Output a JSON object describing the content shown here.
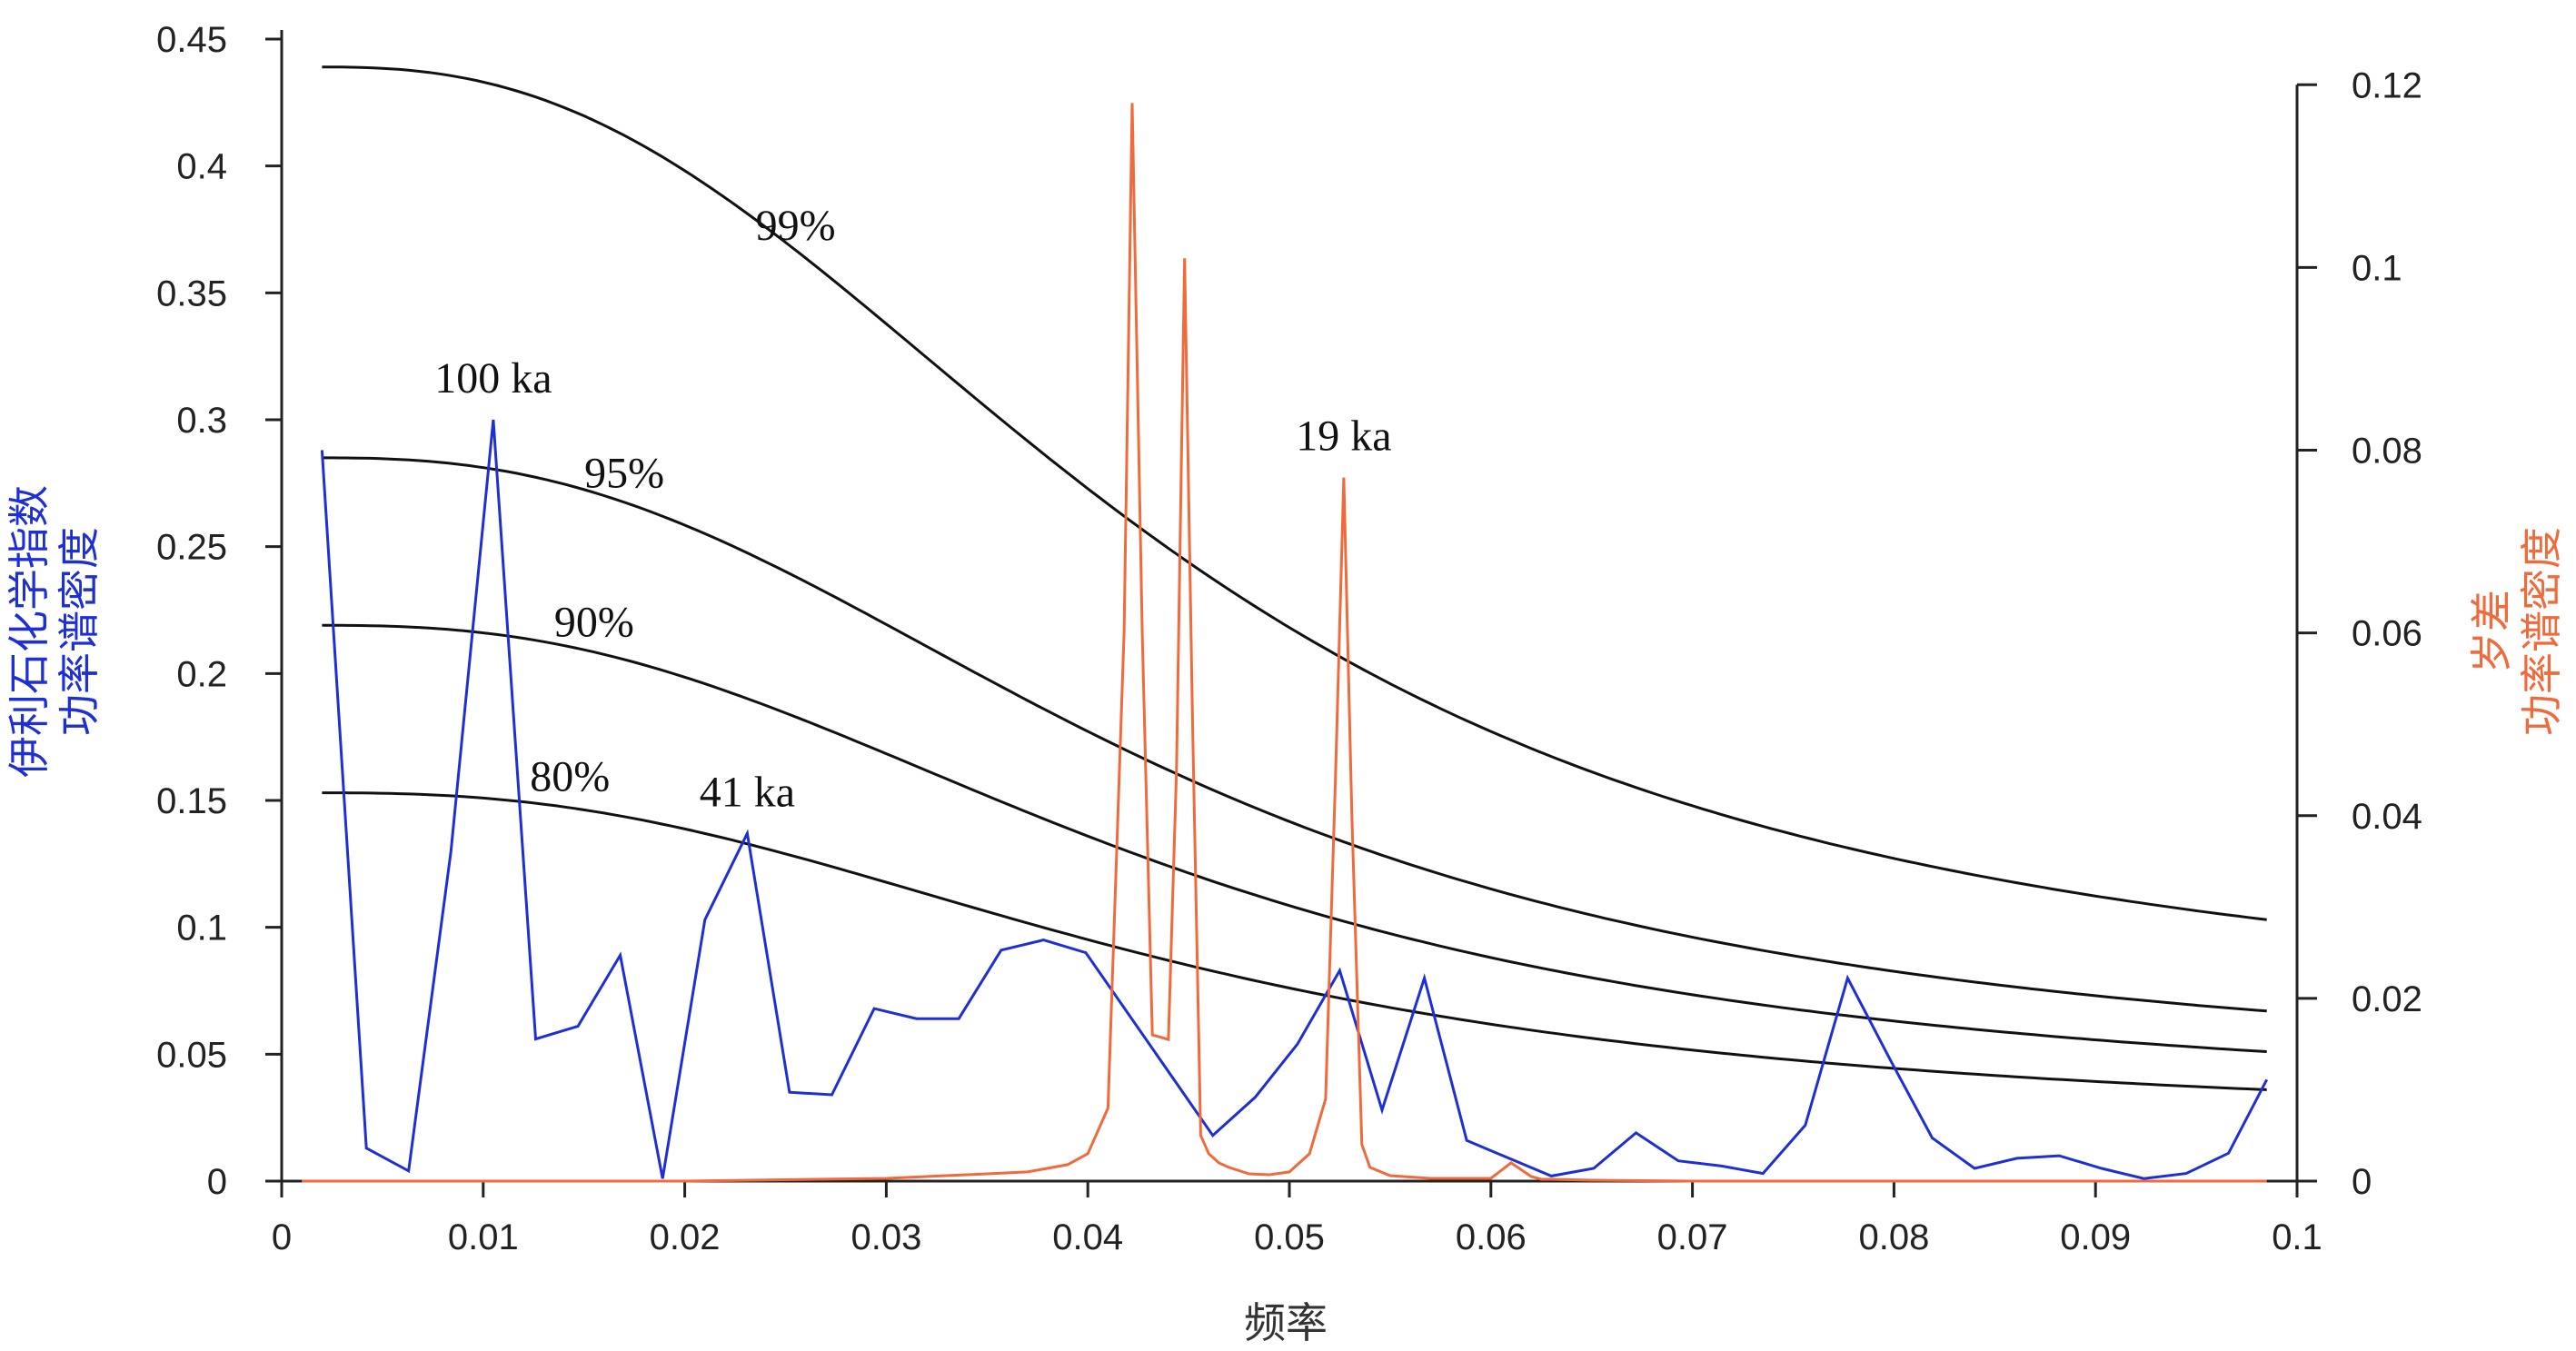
{
  "chart_data": {
    "type": "line",
    "title": "",
    "xlabel": "频率",
    "ylabel_left": [
      "伊利石化学指数",
      "功率谱密度"
    ],
    "ylabel_right": [
      "岁差",
      "功率谱密度"
    ],
    "xlim": [
      0,
      0.1
    ],
    "ylim_left": [
      0,
      0.45
    ],
    "ylim_right": [
      0,
      0.125
    ],
    "x_ticks": [
      "0",
      "0.01",
      "0.02",
      "0.03",
      "0.04",
      "0.05",
      "0.06",
      "0.07",
      "0.08",
      "0.09",
      "0.1"
    ],
    "y_left_ticks": [
      "0",
      "0.05",
      "0.1",
      "0.15",
      "0.2",
      "0.25",
      "0.3",
      "0.35",
      "0.4",
      "0.45"
    ],
    "y_right_ticks": [
      "0",
      "0.02",
      "0.04",
      "0.06",
      "0.08",
      "0.1",
      "0.12"
    ],
    "grid": false,
    "colors": {
      "left_series": "#1f2fd6",
      "right_series": "#f06a3c",
      "confidence": "#111111",
      "axes": "#222222"
    },
    "series": [
      {
        "axis": "left",
        "x": [
          0.002,
          0.0042,
          0.0063,
          0.0084,
          0.0105,
          0.0126,
          0.0147,
          0.0168,
          0.0189,
          0.021,
          0.0231,
          0.0252,
          0.0273,
          0.0294,
          0.0315,
          0.0336,
          0.0357,
          0.0378,
          0.0399,
          0.0462,
          0.0483,
          0.0504,
          0.0525,
          0.0546,
          0.0567,
          0.0588,
          0.0609,
          0.063,
          0.0651,
          0.0672,
          0.0693,
          0.0714,
          0.0735,
          0.0756,
          0.0777,
          0.0798,
          0.0819,
          0.084,
          0.0861,
          0.0882,
          0.0903,
          0.0924,
          0.0945,
          0.0966,
          0.0985
        ],
        "values": [
          0.288,
          0.013,
          0.004,
          0.13,
          0.3,
          0.056,
          0.061,
          0.089,
          0.001,
          0.103,
          0.137,
          0.035,
          0.034,
          0.068,
          0.064,
          0.064,
          0.091,
          0.095,
          0.09,
          0.018,
          0.033,
          0.054,
          0.083,
          0.028,
          0.08,
          0.016,
          0.009,
          0.002,
          0.005,
          0.019,
          0.008,
          0.006,
          0.003,
          0.022,
          0.08,
          0.048,
          0.017,
          0.005,
          0.009,
          0.01,
          0.005,
          0.001,
          0.003,
          0.011,
          0.04
        ]
      },
      {
        "axis": "right",
        "x": [
          0.001,
          0.02,
          0.03,
          0.035,
          0.037,
          0.039,
          0.04,
          0.041,
          0.0418,
          0.0422,
          0.0427,
          0.0432,
          0.044,
          0.0444,
          0.0448,
          0.0452,
          0.0456,
          0.046,
          0.0465,
          0.047,
          0.048,
          0.049,
          0.05,
          0.051,
          0.0518,
          0.0523,
          0.0527,
          0.0531,
          0.0536,
          0.054,
          0.055,
          0.057,
          0.06,
          0.061,
          0.062,
          0.0625,
          0.063,
          0.065,
          0.07,
          0.08,
          0.09,
          0.0985
        ],
        "values": [
          0,
          0,
          0.0003,
          0.0008,
          0.001,
          0.0018,
          0.003,
          0.008,
          0.06,
          0.118,
          0.06,
          0.016,
          0.0155,
          0.045,
          0.101,
          0.05,
          0.005,
          0.003,
          0.002,
          0.0015,
          0.0008,
          0.0007,
          0.001,
          0.003,
          0.009,
          0.045,
          0.077,
          0.04,
          0.004,
          0.0015,
          0.0006,
          0.0003,
          0.0003,
          0.002,
          0.0005,
          0.0002,
          0.0002,
          0.0001,
          0,
          0,
          0,
          0
        ]
      }
    ],
    "confidence_curves": [
      {
        "label": "99%",
        "start": 0.439,
        "end": 0.103
      },
      {
        "label": "95%",
        "start": 0.285,
        "end": 0.067
      },
      {
        "label": "90%",
        "start": 0.219,
        "end": 0.051
      },
      {
        "label": "80%",
        "start": 0.153,
        "end": 0.036
      }
    ],
    "confidence_x_range": [
      0.002,
      0.0985
    ],
    "peak_annotations": [
      {
        "text": "100 ka",
        "x": 0.0105,
        "y": 0.3,
        "axis": "left"
      },
      {
        "text": "41 ka",
        "x": 0.0231,
        "y": 0.137,
        "axis": "left"
      },
      {
        "text": "19 ka",
        "x": 0.0527,
        "y": 0.077,
        "axis": "right"
      }
    ]
  }
}
